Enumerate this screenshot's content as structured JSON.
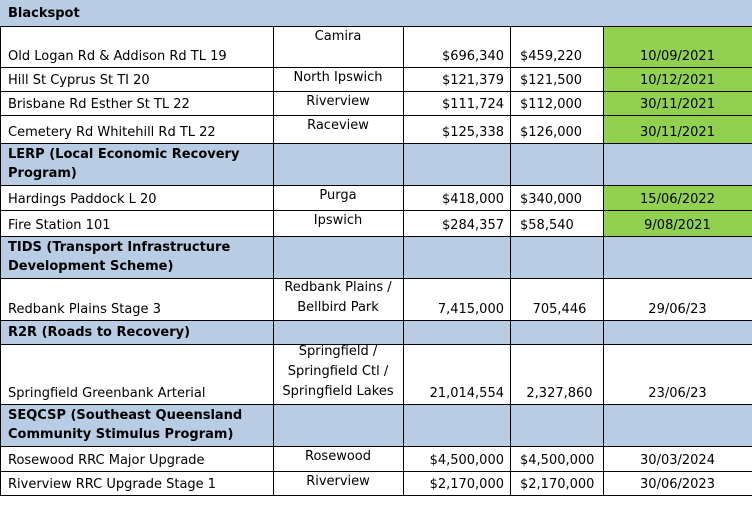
{
  "colors": {
    "section_band": "#b8cce4",
    "date_highlight": "#92d050",
    "grid": "#000000"
  },
  "sections": [
    {
      "title": "Blackspot",
      "rows": [
        {
          "project": "Old Logan Rd & Addison Rd TL 19",
          "suburb": "Camira",
          "amount_a": "$696,340",
          "amount_b": "$459,220",
          "date": "10/09/2021",
          "date_highlighted": true
        },
        {
          "project": "Hill St Cyprus St TI 20",
          "suburb": "North Ipswich",
          "amount_a": "$121,379",
          "amount_b": "$121,500",
          "date": "10/12/2021",
          "date_highlighted": true
        },
        {
          "project": "Brisbane Rd Esther St TL 22",
          "suburb": "Riverview",
          "amount_a": "$111,724",
          "amount_b": "$112,000",
          "date": "30/11/2021",
          "date_highlighted": true
        },
        {
          "project": "Cemetery Rd Whitehill Rd TL 22",
          "suburb": "Raceview",
          "amount_a": "$125,338",
          "amount_b": "$126,000",
          "date": "30/11/2021",
          "date_highlighted": true
        }
      ]
    },
    {
      "title": "LERP (Local Economic Recovery Program)",
      "rows": [
        {
          "project": "Hardings Paddock L 20",
          "suburb": "Purga",
          "amount_a": "$418,000",
          "amount_b": "$340,000",
          "date": "15/06/2022",
          "date_highlighted": true
        },
        {
          "project": "Fire Station 101",
          "suburb": "Ipswich",
          "amount_a": "$284,357",
          "amount_b": "$58,540",
          "date": "9/08/2021",
          "date_highlighted": true
        }
      ]
    },
    {
      "title": "TIDS (Transport Infrastructure Development Scheme)",
      "rows": [
        {
          "project": "Redbank Plains Stage 3",
          "suburb": "Redbank Plains / Bellbird Park",
          "amount_a": "7,415,000",
          "amount_b": "705,446",
          "date": "29/06/23",
          "date_highlighted": false
        }
      ]
    },
    {
      "title": "R2R (Roads to Recovery)",
      "rows": [
        {
          "project": "Springfield Greenbank Arterial",
          "suburb": "Springfield / Springfield Ctl / Springfield Lakes",
          "amount_a": "21,014,554",
          "amount_b": "2,327,860",
          "date": "23/06/23",
          "date_highlighted": false
        }
      ]
    },
    {
      "title": "SEQCSP (Southeast Queensland Community Stimulus Program)",
      "rows": [
        {
          "project": "Rosewood RRC Major Upgrade",
          "suburb": "Rosewood",
          "amount_a": "$4,500,000",
          "amount_b": "$4,500,000",
          "date": "30/03/2024",
          "date_highlighted": false
        },
        {
          "project": "Riverview RRC Upgrade Stage 1",
          "suburb": "Riverview",
          "amount_a": "$2,170,000",
          "amount_b": "$2,170,000",
          "date": "30/06/2023",
          "date_highlighted": false
        }
      ]
    }
  ]
}
